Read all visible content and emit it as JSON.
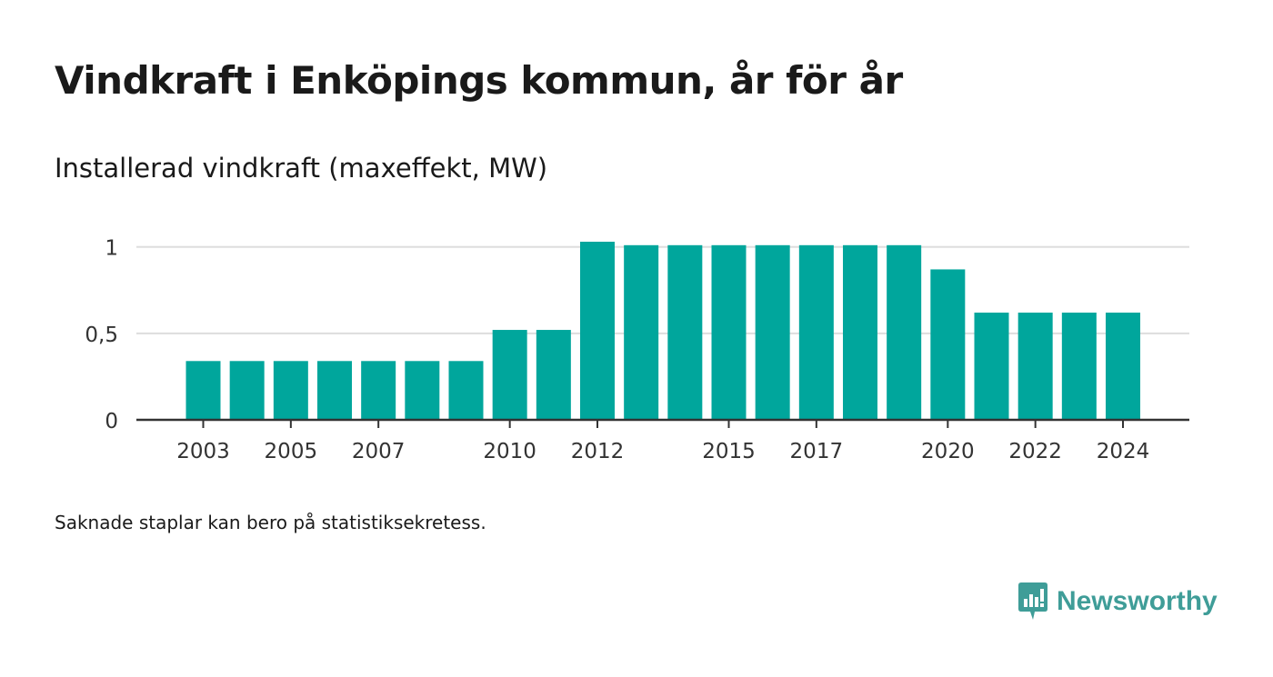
{
  "header": {
    "title": "Vindkraft i Enköpings kommun, år för år",
    "subtitle": "Installerad vindkraft (maxeffekt, MW)"
  },
  "footer": {
    "note": "Saknade staplar kan bero på statistiksekretess.",
    "brand": "Newsworthy",
    "brand_icon": "newsworthy-logo-icon"
  },
  "colors": {
    "bar": "#00a69c",
    "grid": "#dddddd",
    "axis": "#333333",
    "brand": "#3f9d98"
  },
  "chart_data": {
    "type": "bar",
    "title": "",
    "xlabel": "",
    "ylabel": "",
    "categories": [
      "2003",
      "2004",
      "2005",
      "2006",
      "2007",
      "2008",
      "2009",
      "2010",
      "2011",
      "2012",
      "2013",
      "2014",
      "2015",
      "2016",
      "2017",
      "2018",
      "2019",
      "2020",
      "2021",
      "2022",
      "2023",
      "2024"
    ],
    "values": [
      0.34,
      0.34,
      0.34,
      0.34,
      0.34,
      0.34,
      0.34,
      0.52,
      0.52,
      1.03,
      1.01,
      1.01,
      1.01,
      1.01,
      1.01,
      1.01,
      1.01,
      0.87,
      0.62,
      0.62,
      0.62,
      0.62
    ],
    "x_tick_labels": [
      "2003",
      "2005",
      "2007",
      "2010",
      "2012",
      "2015",
      "2017",
      "2020",
      "2022",
      "2024"
    ],
    "y_ticks": [
      0,
      0.5,
      1
    ],
    "y_tick_labels": [
      "0",
      "0,5",
      "1"
    ],
    "ylim": [
      0,
      1.03
    ],
    "grid": true,
    "legend": "none"
  }
}
